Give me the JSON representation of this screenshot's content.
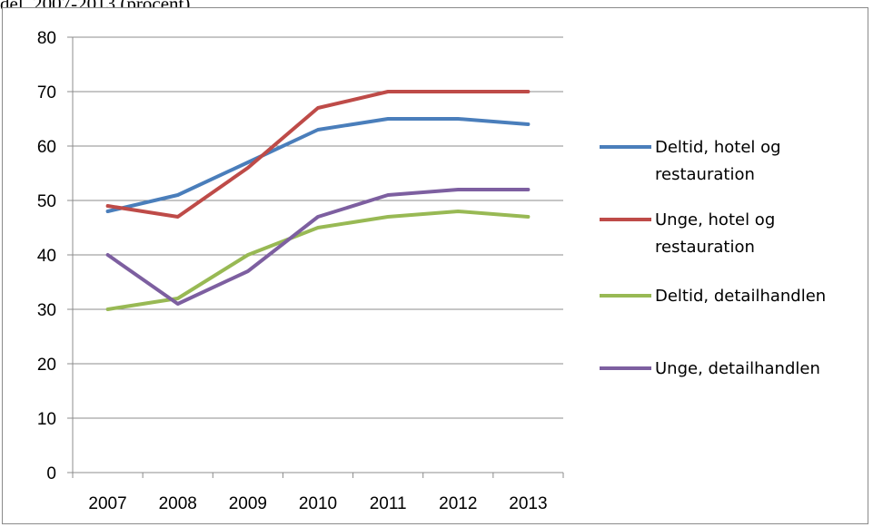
{
  "caption": "del, 2007-2013 (procent)",
  "chart_data": {
    "type": "line",
    "categories": [
      "2007",
      "2008",
      "2009",
      "2010",
      "2011",
      "2012",
      "2013"
    ],
    "ylim": [
      0,
      80
    ],
    "yticks": [
      0,
      10,
      20,
      30,
      40,
      50,
      60,
      70,
      80
    ],
    "grid": true,
    "legend_position": "right",
    "series": [
      {
        "name": "Deltid, hotel og restauration",
        "color": "#4a7ebb",
        "values": [
          48,
          51,
          57,
          63,
          65,
          65,
          64
        ]
      },
      {
        "name": "Unge, hotel og restauration",
        "color": "#be4b48",
        "values": [
          49,
          47,
          56,
          67,
          70,
          70,
          70
        ]
      },
      {
        "name": "Deltid, detailhandlen",
        "color": "#98b954",
        "values": [
          30,
          32,
          40,
          45,
          47,
          48,
          47
        ]
      },
      {
        "name": "Unge, detailhandlen",
        "color": "#7d5fa0",
        "values": [
          40,
          31,
          37,
          47,
          51,
          52,
          52
        ]
      }
    ]
  }
}
